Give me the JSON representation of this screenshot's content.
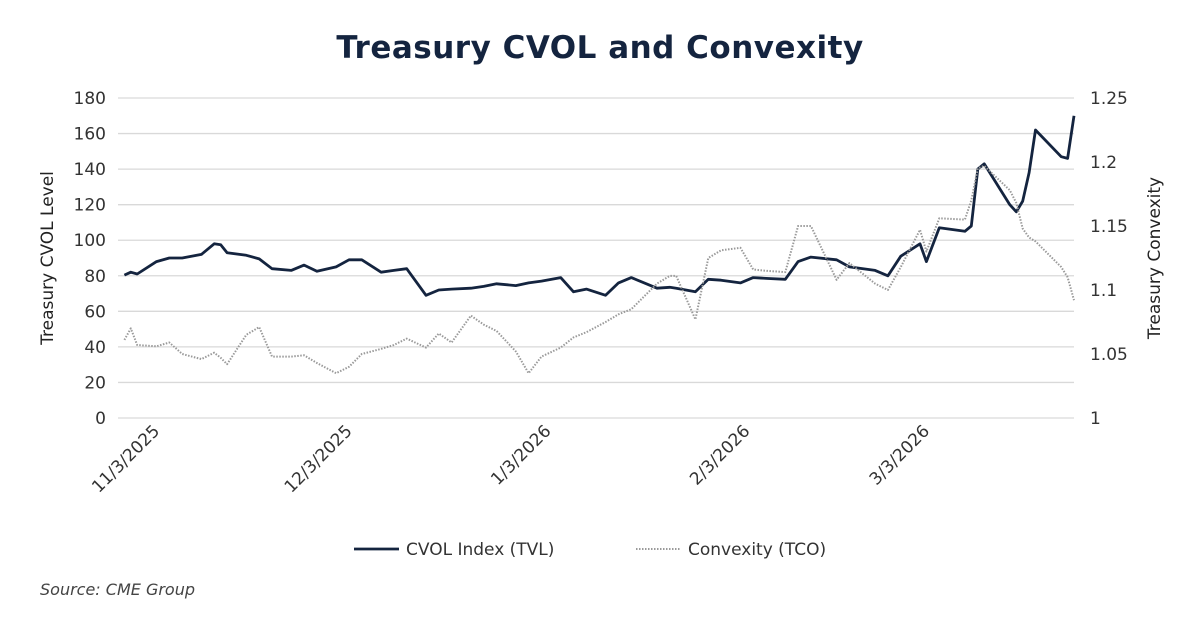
{
  "chart_data": {
    "type": "line",
    "title": "Treasury CVOL and Convexity",
    "ylabel": "Treasury CVOL Level",
    "y2label": "Treasury Convexity",
    "ylim": [
      0,
      180
    ],
    "y2lim": [
      1,
      1.25
    ],
    "yticks": [
      "0",
      "20",
      "40",
      "60",
      "80",
      "100",
      "120",
      "140",
      "160",
      "180"
    ],
    "y2ticks": [
      "1",
      "1.05",
      "1.1",
      "1.15",
      "1.2",
      "1.25"
    ],
    "xlim": [
      "2025-10-28",
      "2026-03-26"
    ],
    "xticks": [
      {
        "date": "2025-11-03",
        "label": "11/3/2025"
      },
      {
        "date": "2025-12-03",
        "label": "12/3/2025"
      },
      {
        "date": "2026-01-03",
        "label": "1/3/2026"
      },
      {
        "date": "2026-02-03",
        "label": "2/3/2026"
      },
      {
        "date": "2026-03-03",
        "label": "3/3/2026"
      }
    ],
    "grid": true,
    "legend_position": "bottom",
    "x": [
      "2025-10-29",
      "2025-10-30",
      "2025-10-31",
      "2025-11-03",
      "2025-11-05",
      "2025-11-07",
      "2025-11-10",
      "2025-11-12",
      "2025-11-13",
      "2025-11-14",
      "2025-11-17",
      "2025-11-19",
      "2025-11-21",
      "2025-11-24",
      "2025-11-26",
      "2025-11-28",
      "2025-12-01",
      "2025-12-03",
      "2025-12-05",
      "2025-12-08",
      "2025-12-10",
      "2025-12-12",
      "2025-12-15",
      "2025-12-17",
      "2025-12-19",
      "2025-12-22",
      "2025-12-24",
      "2025-12-26",
      "2025-12-29",
      "2025-12-31",
      "2026-01-02",
      "2026-01-05",
      "2026-01-07",
      "2026-01-09",
      "2026-01-12",
      "2026-01-14",
      "2026-01-16",
      "2026-01-20",
      "2026-01-22",
      "2026-01-23",
      "2026-01-26",
      "2026-01-28",
      "2026-01-30",
      "2026-02-02",
      "2026-02-04",
      "2026-02-06",
      "2026-02-09",
      "2026-02-11",
      "2026-02-13",
      "2026-02-17",
      "2026-02-19",
      "2026-02-23",
      "2026-02-25",
      "2026-02-27",
      "2026-03-02",
      "2026-03-03",
      "2026-03-05",
      "2026-03-09",
      "2026-03-10",
      "2026-03-11",
      "2026-03-12",
      "2026-03-16",
      "2026-03-17",
      "2026-03-18",
      "2026-03-19",
      "2026-03-20",
      "2026-03-24",
      "2026-03-25",
      "2026-03-26"
    ],
    "series": [
      {
        "name": "CVOL Index (TVL)",
        "axis": "left",
        "color": "#14243f",
        "style": "solid",
        "values": [
          80.4,
          82,
          81,
          88,
          90,
          90,
          92,
          98,
          97.5,
          93,
          91.5,
          89.5,
          84,
          83,
          86,
          82.5,
          85,
          89,
          89,
          82,
          83,
          84,
          69,
          72,
          72.5,
          73,
          74,
          75.5,
          74.5,
          76,
          77,
          79,
          71,
          72.5,
          69,
          76,
          79,
          73,
          73.5,
          73,
          71,
          78,
          77.5,
          76,
          79,
          78.5,
          78,
          88,
          90.5,
          89,
          85,
          83,
          80,
          91,
          98,
          88,
          107,
          105,
          108,
          140,
          143,
          120,
          116,
          122,
          138,
          162,
          147,
          146,
          170
        ]
      },
      {
        "name": "Convexity (TCO)",
        "axis": "right",
        "color": "#9a9a9a",
        "style": "dotted",
        "values": [
          1.061,
          1.07,
          1.057,
          1.056,
          1.059,
          1.05,
          1.046,
          1.051,
          1.047,
          1.042,
          1.065,
          1.071,
          1.048,
          1.048,
          1.049,
          1.043,
          1.035,
          1.04,
          1.05,
          1.054,
          1.057,
          1.062,
          1.055,
          1.066,
          1.059,
          1.08,
          1.073,
          1.068,
          1.052,
          1.035,
          1.048,
          1.055,
          1.063,
          1.067,
          1.075,
          1.081,
          1.085,
          1.105,
          1.111,
          1.111,
          1.077,
          1.125,
          1.131,
          1.133,
          1.116,
          1.115,
          1.114,
          1.15,
          1.15,
          1.108,
          1.121,
          1.105,
          1.1,
          1.118,
          1.147,
          1.13,
          1.156,
          1.155,
          1.17,
          1.195,
          1.197,
          1.178,
          1.168,
          1.148,
          1.141,
          1.138,
          1.118,
          1.11,
          1.092
        ]
      }
    ]
  },
  "source": "Source: CME Group"
}
